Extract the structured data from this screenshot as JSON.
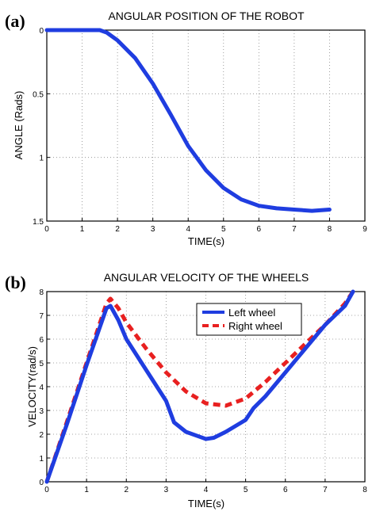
{
  "chart_data": [
    {
      "panel_label": "(a)",
      "type": "line",
      "title": "ANGULAR POSITION OF THE ROBOT",
      "xlabel": "TIME(s)",
      "ylabel": "ANGLE (Rads)",
      "xlim": [
        0,
        9
      ],
      "ylim": [
        0,
        1.5
      ],
      "y_reversed": true,
      "xticks": [
        "0",
        "1",
        "2",
        "3",
        "4",
        "5",
        "6",
        "7",
        "8",
        "9"
      ],
      "yticks": [
        "0",
        "0.5",
        "1",
        "1.5"
      ],
      "grid": true,
      "series": [
        {
          "color": "#1f3de0",
          "dash": "solid",
          "x": [
            0,
            0.5,
            1.0,
            1.5,
            1.7,
            2.0,
            2.5,
            3.0,
            3.5,
            4.0,
            4.5,
            5.0,
            5.5,
            6.0,
            6.5,
            7.0,
            7.5,
            8.0
          ],
          "y": [
            0.0,
            0.0,
            0.0,
            0.0,
            0.02,
            0.08,
            0.22,
            0.42,
            0.66,
            0.91,
            1.1,
            1.24,
            1.33,
            1.38,
            1.4,
            1.41,
            1.42,
            1.41
          ]
        }
      ]
    },
    {
      "panel_label": "(b)",
      "type": "line",
      "title": "ANGULAR VELOCITY OF THE WHEELS",
      "xlabel": "TIME(s)",
      "ylabel": "VELOCITY(rad/s)",
      "xlim": [
        0,
        8
      ],
      "ylim": [
        0,
        8
      ],
      "xticks": [
        "0",
        "1",
        "2",
        "3",
        "4",
        "5",
        "6",
        "7",
        "8"
      ],
      "yticks": [
        "0",
        "1",
        "2",
        "3",
        "4",
        "5",
        "6",
        "7",
        "8"
      ],
      "grid": true,
      "legend_position": "top-right",
      "series": [
        {
          "name": "Left wheel",
          "color": "#1f3de0",
          "dash": "solid",
          "x": [
            0,
            0.5,
            1.0,
            1.5,
            1.6,
            1.8,
            2.0,
            2.5,
            3.0,
            3.2,
            3.5,
            4.0,
            4.2,
            4.5,
            5.0,
            5.2,
            5.5,
            6.0,
            6.5,
            7.0,
            7.5,
            7.7
          ],
          "y": [
            0,
            2.4,
            4.9,
            7.3,
            7.4,
            6.8,
            6.0,
            4.7,
            3.4,
            2.5,
            2.1,
            1.8,
            1.85,
            2.1,
            2.6,
            3.1,
            3.6,
            4.6,
            5.6,
            6.6,
            7.4,
            8.0
          ]
        },
        {
          "name": "Right wheel",
          "color": "#e82020",
          "dash": "dashed",
          "x": [
            0,
            0.5,
            1.0,
            1.5,
            1.6,
            1.8,
            2.0,
            2.5,
            3.0,
            3.5,
            4.0,
            4.5,
            5.0,
            5.5,
            6.0,
            6.5,
            7.0,
            7.5,
            7.7
          ],
          "y": [
            0,
            2.5,
            5.0,
            7.5,
            7.7,
            7.3,
            6.7,
            5.6,
            4.6,
            3.8,
            3.3,
            3.2,
            3.5,
            4.2,
            5.0,
            5.8,
            6.6,
            7.5,
            8.0
          ]
        }
      ]
    }
  ]
}
